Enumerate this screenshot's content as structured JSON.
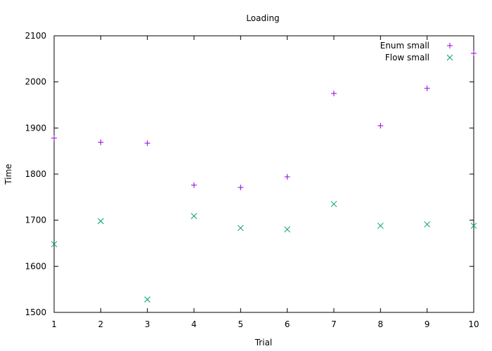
{
  "chart_data": {
    "type": "scatter",
    "title": "Loading",
    "xlabel": "Trial",
    "ylabel": "Time",
    "xlim": [
      1,
      10
    ],
    "ylim": [
      1500,
      2100
    ],
    "xticks": [
      1,
      2,
      3,
      4,
      5,
      6,
      7,
      8,
      9,
      10
    ],
    "yticks": [
      1500,
      1600,
      1700,
      1800,
      1900,
      2000,
      2100
    ],
    "grid": false,
    "legend": "top-right",
    "series": [
      {
        "name": "Enum small",
        "marker": "plus",
        "color": "#9400d3",
        "x": [
          1,
          2,
          3,
          4,
          5,
          6,
          7,
          8,
          9,
          10
        ],
        "y": [
          1878,
          1869,
          1867,
          1776,
          1771,
          1794,
          1975,
          1905,
          1986,
          2062
        ]
      },
      {
        "name": "Flow small",
        "marker": "cross",
        "color": "#009e73",
        "x": [
          1,
          2,
          3,
          4,
          5,
          6,
          7,
          8,
          9,
          10
        ],
        "y": [
          1648,
          1698,
          1528,
          1709,
          1683,
          1680,
          1735,
          1688,
          1691,
          1688
        ]
      }
    ]
  }
}
